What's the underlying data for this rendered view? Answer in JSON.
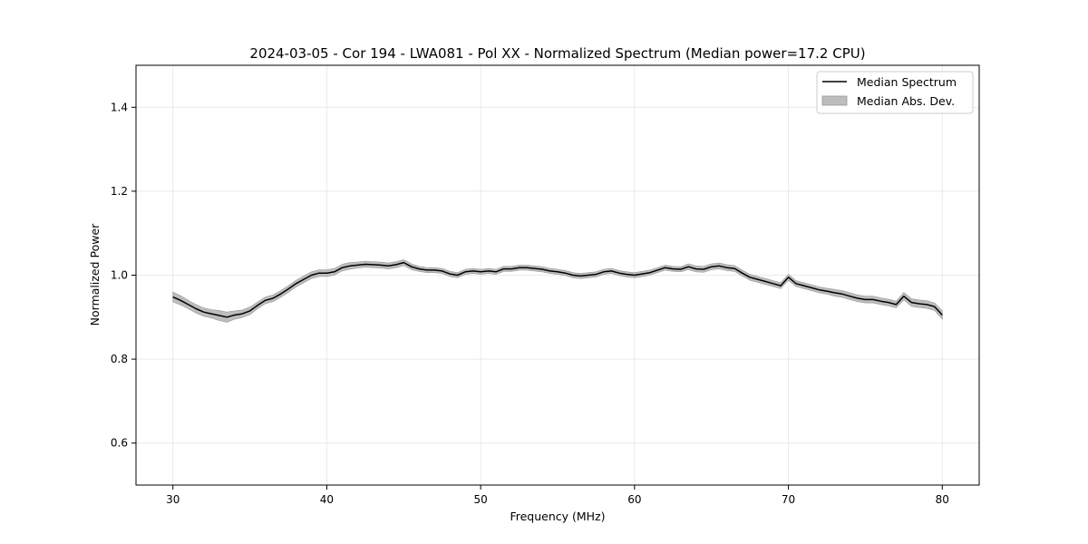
{
  "chart_data": {
    "type": "line",
    "title": "2024-03-05 - Cor 194 - LWA081 - Pol XX - Normalized Spectrum (Median power=17.2 CPU)",
    "xlabel": "Frequency (MHz)",
    "ylabel": "Normalized Power",
    "xlim": [
      27.6,
      82.4
    ],
    "ylim": [
      0.5,
      1.5
    ],
    "xticks": [
      30,
      40,
      50,
      60,
      70,
      80
    ],
    "yticks": [
      0.6,
      0.8,
      1.0,
      1.2,
      1.4
    ],
    "xtick_labels": [
      "30",
      "40",
      "50",
      "60",
      "70",
      "80"
    ],
    "ytick_labels": [
      "0.6",
      "0.8",
      "1.0",
      "1.2",
      "1.4"
    ],
    "grid": true,
    "legend": {
      "position": "top-right",
      "entries": [
        "Median Spectrum",
        "Median Abs. Dev."
      ]
    },
    "series": [
      {
        "name": "Median Spectrum",
        "x": [
          30,
          30.5,
          31,
          31.5,
          32,
          32.5,
          33,
          33.5,
          34,
          34.5,
          35,
          35.5,
          36,
          36.5,
          37,
          37.5,
          38,
          38.5,
          39,
          39.5,
          40,
          40.5,
          41,
          41.5,
          42,
          42.5,
          43,
          43.5,
          44,
          44.5,
          45,
          45.5,
          46,
          46.5,
          47,
          47.5,
          48,
          48.5,
          49,
          49.5,
          50,
          50.5,
          51,
          51.5,
          52,
          52.5,
          53,
          53.5,
          54,
          54.5,
          55,
          55.5,
          56,
          56.5,
          57,
          57.5,
          58,
          58.5,
          59,
          59.5,
          60,
          60.5,
          61,
          61.5,
          62,
          62.5,
          63,
          63.5,
          64,
          64.5,
          65,
          65.5,
          66,
          66.5,
          67,
          67.5,
          68,
          68.5,
          69,
          69.5,
          70,
          70.5,
          71,
          71.5,
          72,
          72.5,
          73,
          73.5,
          74,
          74.5,
          75,
          75.5,
          76,
          76.5,
          77,
          77.5,
          78,
          78.5,
          79,
          79.5,
          80
        ],
        "values": [
          0.948,
          0.94,
          0.93,
          0.92,
          0.912,
          0.908,
          0.904,
          0.9,
          0.905,
          0.908,
          0.915,
          0.928,
          0.94,
          0.945,
          0.955,
          0.967,
          0.98,
          0.99,
          1.0,
          1.005,
          1.005,
          1.008,
          1.018,
          1.022,
          1.024,
          1.026,
          1.025,
          1.024,
          1.022,
          1.025,
          1.03,
          1.02,
          1.015,
          1.012,
          1.012,
          1.01,
          1.003,
          1.0,
          1.008,
          1.01,
          1.008,
          1.01,
          1.008,
          1.015,
          1.015,
          1.018,
          1.018,
          1.016,
          1.014,
          1.01,
          1.008,
          1.005,
          1.0,
          0.998,
          1.0,
          1.002,
          1.008,
          1.01,
          1.005,
          1.002,
          1.0,
          1.003,
          1.006,
          1.012,
          1.018,
          1.015,
          1.014,
          1.02,
          1.015,
          1.014,
          1.02,
          1.022,
          1.018,
          1.016,
          1.005,
          0.995,
          0.99,
          0.985,
          0.98,
          0.975,
          0.995,
          0.98,
          0.975,
          0.97,
          0.965,
          0.962,
          0.958,
          0.955,
          0.95,
          0.945,
          0.942,
          0.942,
          0.938,
          0.935,
          0.93,
          0.95,
          0.935,
          0.932,
          0.93,
          0.925,
          0.905
        ],
        "deviation": [
          0.012,
          0.011,
          0.01,
          0.01,
          0.01,
          0.01,
          0.012,
          0.012,
          0.01,
          0.009,
          0.009,
          0.008,
          0.008,
          0.008,
          0.008,
          0.008,
          0.008,
          0.008,
          0.008,
          0.008,
          0.008,
          0.008,
          0.008,
          0.008,
          0.007,
          0.007,
          0.007,
          0.007,
          0.007,
          0.007,
          0.007,
          0.007,
          0.006,
          0.006,
          0.006,
          0.006,
          0.006,
          0.006,
          0.006,
          0.006,
          0.006,
          0.006,
          0.006,
          0.006,
          0.006,
          0.006,
          0.006,
          0.006,
          0.006,
          0.006,
          0.006,
          0.006,
          0.006,
          0.006,
          0.006,
          0.006,
          0.006,
          0.006,
          0.006,
          0.006,
          0.006,
          0.006,
          0.006,
          0.006,
          0.006,
          0.006,
          0.006,
          0.007,
          0.007,
          0.007,
          0.007,
          0.007,
          0.007,
          0.007,
          0.007,
          0.007,
          0.007,
          0.007,
          0.007,
          0.007,
          0.007,
          0.007,
          0.007,
          0.007,
          0.007,
          0.007,
          0.008,
          0.008,
          0.008,
          0.008,
          0.008,
          0.008,
          0.008,
          0.008,
          0.008,
          0.009,
          0.009,
          0.009,
          0.009,
          0.009,
          0.01
        ]
      }
    ],
    "colors": {
      "line": "#000000",
      "band": "#bdbdbd",
      "band_edge": "#999999",
      "grid": "#e6e6e6",
      "axes": "#000000"
    }
  }
}
